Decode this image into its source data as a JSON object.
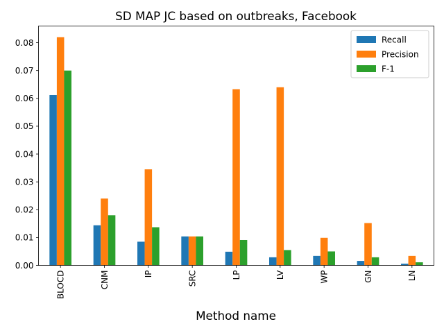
{
  "chart_data": {
    "type": "bar",
    "title": "SD MAP JC based on outbreaks, Facebook",
    "xlabel": "Method name",
    "ylabel": "",
    "categories": [
      "BLOCD",
      "CNM",
      "IP",
      "SRC",
      "LP",
      "LV",
      "WP",
      "GN",
      "LN"
    ],
    "series": [
      {
        "name": "Recall",
        "color": "#1f77b4",
        "values": [
          0.0612,
          0.0144,
          0.0085,
          0.0104,
          0.0049,
          0.0029,
          0.0034,
          0.0016,
          0.0006
        ]
      },
      {
        "name": "Precision",
        "color": "#ff7f0e",
        "values": [
          0.082,
          0.024,
          0.0345,
          0.0104,
          0.0633,
          0.064,
          0.0099,
          0.0152,
          0.0034
        ]
      },
      {
        "name": "F-1",
        "color": "#2ca02c",
        "values": [
          0.07,
          0.018,
          0.0137,
          0.0104,
          0.0091,
          0.0055,
          0.005,
          0.0029,
          0.0011
        ]
      }
    ],
    "ylim": [
      0,
      0.086
    ],
    "yticks": [
      "0.00",
      "0.01",
      "0.02",
      "0.03",
      "0.04",
      "0.05",
      "0.06",
      "0.07",
      "0.08"
    ],
    "legend": "top-right",
    "grid": false
  }
}
